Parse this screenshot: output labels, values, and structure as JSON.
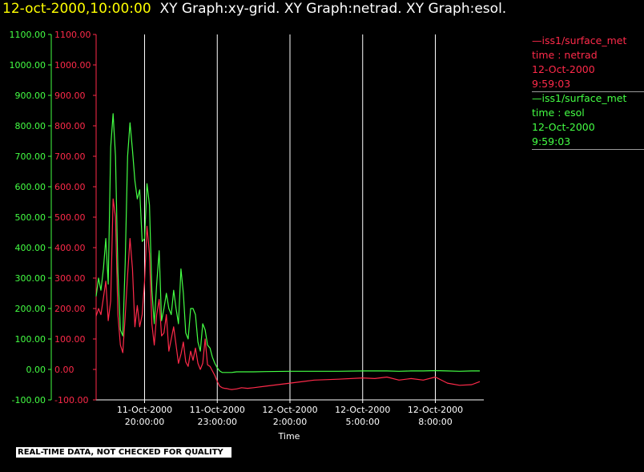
{
  "title": {
    "timestamp": "12-oct-2000,10:00:00",
    "graphs": "XY Graph:xy-grid.  XY Graph:netrad.  XY Graph:esol."
  },
  "colors": {
    "background": "#000000",
    "netrad": "#ff2a4a",
    "esol": "#44ff44",
    "grid": "#ffffff",
    "timestamp": "#ffff00"
  },
  "legend": [
    {
      "lines": [
        "—iss1/surface_met",
        "time : netrad",
        "12-Oct-2000",
        "9:59:03"
      ],
      "color": "#ff2a4a"
    },
    {
      "lines": [
        "—iss1/surface_met",
        "time : esol",
        "12-Oct-2000",
        "9:59:03"
      ],
      "color": "#44ff44"
    }
  ],
  "disclaimer": "REAL-TIME DATA, NOT CHECKED FOR QUALITY",
  "chart_data": {
    "type": "line",
    "xlabel": "Time",
    "xlim": [
      "11-Oct-2000 18:00:00",
      "12-Oct-2000 10:00:00"
    ],
    "ylim": [
      -100,
      1100
    ],
    "grid": true,
    "y_ticks": [
      "1100.00",
      "1000.00",
      "900.00",
      "800.00",
      "700.00",
      "600.00",
      "500.00",
      "400.00",
      "300.00",
      "200.00",
      "100.00",
      "0.00",
      "-100.00"
    ],
    "x_ticks": [
      {
        "time": "11-Oct-2000 20:00:00",
        "date": "11-Oct-2000",
        "clock": "20:00:00"
      },
      {
        "time": "11-Oct-2000 23:00:00",
        "date": "11-Oct-2000",
        "clock": "23:00:00"
      },
      {
        "time": "12-Oct-2000 02:00:00",
        "date": "12-Oct-2000",
        "clock": "2:00:00"
      },
      {
        "time": "12-Oct-2000 05:00:00",
        "date": "12-Oct-2000",
        "clock": "5:00:00"
      },
      {
        "time": "12-Oct-2000 08:00:00",
        "date": "12-Oct-2000",
        "clock": "8:00:00"
      }
    ],
    "series": [
      {
        "name": "netrad",
        "x": [
          "11-Oct-2000 18:00",
          "11-Oct-2000 18:06",
          "11-Oct-2000 18:12",
          "11-Oct-2000 18:18",
          "11-Oct-2000 18:24",
          "11-Oct-2000 18:30",
          "11-Oct-2000 18:36",
          "11-Oct-2000 18:42",
          "11-Oct-2000 18:48",
          "11-Oct-2000 18:54",
          "11-Oct-2000 19:00",
          "11-Oct-2000 19:06",
          "11-Oct-2000 19:12",
          "11-Oct-2000 19:18",
          "11-Oct-2000 19:24",
          "11-Oct-2000 19:30",
          "11-Oct-2000 19:36",
          "11-Oct-2000 19:42",
          "11-Oct-2000 19:48",
          "11-Oct-2000 19:54",
          "11-Oct-2000 20:00",
          "11-Oct-2000 20:06",
          "11-Oct-2000 20:12",
          "11-Oct-2000 20:18",
          "11-Oct-2000 20:24",
          "11-Oct-2000 20:30",
          "11-Oct-2000 20:36",
          "11-Oct-2000 20:42",
          "11-Oct-2000 20:48",
          "11-Oct-2000 20:54",
          "11-Oct-2000 21:00",
          "11-Oct-2000 21:06",
          "11-Oct-2000 21:12",
          "11-Oct-2000 21:18",
          "11-Oct-2000 21:24",
          "11-Oct-2000 21:30",
          "11-Oct-2000 21:36",
          "11-Oct-2000 21:42",
          "11-Oct-2000 21:48",
          "11-Oct-2000 21:54",
          "11-Oct-2000 22:00",
          "11-Oct-2000 22:06",
          "11-Oct-2000 22:12",
          "11-Oct-2000 22:18",
          "11-Oct-2000 22:24",
          "11-Oct-2000 22:30",
          "11-Oct-2000 22:36",
          "11-Oct-2000 22:42",
          "11-Oct-2000 22:48",
          "11-Oct-2000 22:54",
          "11-Oct-2000 23:00",
          "11-Oct-2000 23:06",
          "11-Oct-2000 23:12",
          "11-Oct-2000 23:18",
          "11-Oct-2000 23:24",
          "11-Oct-2000 23:30",
          "11-Oct-2000 23:36",
          "11-Oct-2000 23:42",
          "11-Oct-2000 23:48",
          "11-Oct-2000 23:54",
          "12-Oct-2000 00:00",
          "12-Oct-2000 00:15",
          "12-Oct-2000 00:30",
          "12-Oct-2000 01:00",
          "12-Oct-2000 02:00",
          "12-Oct-2000 03:00",
          "12-Oct-2000 04:00",
          "12-Oct-2000 05:00",
          "12-Oct-2000 05:30",
          "12-Oct-2000 06:00",
          "12-Oct-2000 06:30",
          "12-Oct-2000 07:00",
          "12-Oct-2000 07:30",
          "12-Oct-2000 08:00",
          "12-Oct-2000 08:30",
          "12-Oct-2000 09:00",
          "12-Oct-2000 09:30",
          "12-Oct-2000 09:50"
        ],
        "values": [
          175,
          200,
          180,
          235,
          290,
          160,
          225,
          560,
          500,
          180,
          80,
          55,
          175,
          310,
          430,
          330,
          140,
          210,
          140,
          180,
          290,
          470,
          380,
          150,
          80,
          180,
          230,
          110,
          120,
          180,
          60,
          100,
          140,
          80,
          20,
          50,
          90,
          25,
          10,
          60,
          30,
          70,
          20,
          0,
          20,
          100,
          15,
          10,
          -5,
          -20,
          -40,
          -55,
          -60,
          -62,
          -63,
          -65,
          -66,
          -65,
          -64,
          -62,
          -60,
          -62,
          -60,
          -55,
          -45,
          -35,
          -32,
          -28,
          -30,
          -25,
          -35,
          -30,
          -35,
          -25,
          -45,
          -52,
          -50,
          -40
        ]
      },
      {
        "name": "esol",
        "x": [
          "11-Oct-2000 18:00",
          "11-Oct-2000 18:06",
          "11-Oct-2000 18:12",
          "11-Oct-2000 18:18",
          "11-Oct-2000 18:24",
          "11-Oct-2000 18:30",
          "11-Oct-2000 18:36",
          "11-Oct-2000 18:42",
          "11-Oct-2000 18:48",
          "11-Oct-2000 18:54",
          "11-Oct-2000 19:00",
          "11-Oct-2000 19:06",
          "11-Oct-2000 19:12",
          "11-Oct-2000 19:18",
          "11-Oct-2000 19:24",
          "11-Oct-2000 19:30",
          "11-Oct-2000 19:36",
          "11-Oct-2000 19:42",
          "11-Oct-2000 19:48",
          "11-Oct-2000 19:54",
          "11-Oct-2000 20:00",
          "11-Oct-2000 20:06",
          "11-Oct-2000 20:12",
          "11-Oct-2000 20:18",
          "11-Oct-2000 20:24",
          "11-Oct-2000 20:30",
          "11-Oct-2000 20:36",
          "11-Oct-2000 20:42",
          "11-Oct-2000 20:48",
          "11-Oct-2000 20:54",
          "11-Oct-2000 21:00",
          "11-Oct-2000 21:06",
          "11-Oct-2000 21:12",
          "11-Oct-2000 21:18",
          "11-Oct-2000 21:24",
          "11-Oct-2000 21:30",
          "11-Oct-2000 21:36",
          "11-Oct-2000 21:42",
          "11-Oct-2000 21:48",
          "11-Oct-2000 21:54",
          "11-Oct-2000 22:00",
          "11-Oct-2000 22:06",
          "11-Oct-2000 22:12",
          "11-Oct-2000 22:18",
          "11-Oct-2000 22:24",
          "11-Oct-2000 22:30",
          "11-Oct-2000 22:36",
          "11-Oct-2000 22:42",
          "11-Oct-2000 22:48",
          "11-Oct-2000 22:54",
          "11-Oct-2000 23:00",
          "11-Oct-2000 23:06",
          "11-Oct-2000 23:12",
          "11-Oct-2000 23:18",
          "11-Oct-2000 23:24",
          "11-Oct-2000 23:30",
          "11-Oct-2000 23:36",
          "11-Oct-2000 23:42",
          "11-Oct-2000 23:48",
          "11-Oct-2000 23:54",
          "12-Oct-2000 00:00",
          "12-Oct-2000 00:15",
          "12-Oct-2000 00:30",
          "12-Oct-2000 01:00",
          "12-Oct-2000 02:00",
          "12-Oct-2000 03:00",
          "12-Oct-2000 04:00",
          "12-Oct-2000 05:00",
          "12-Oct-2000 05:30",
          "12-Oct-2000 06:00",
          "12-Oct-2000 06:30",
          "12-Oct-2000 07:00",
          "12-Oct-2000 07:30",
          "12-Oct-2000 08:00",
          "12-Oct-2000 08:30",
          "12-Oct-2000 09:00",
          "12-Oct-2000 09:30",
          "12-Oct-2000 09:50"
        ],
        "values": [
          240,
          300,
          260,
          330,
          430,
          280,
          730,
          840,
          700,
          320,
          130,
          110,
          350,
          700,
          810,
          720,
          620,
          560,
          590,
          420,
          430,
          610,
          540,
          260,
          150,
          280,
          390,
          160,
          200,
          250,
          200,
          180,
          260,
          200,
          150,
          330,
          250,
          120,
          100,
          200,
          200,
          180,
          90,
          60,
          150,
          130,
          80,
          70,
          40,
          20,
          5,
          -5,
          -10,
          -10,
          -10,
          -10,
          -10,
          -9,
          -8,
          -8,
          -8,
          -8,
          -8,
          -7,
          -6,
          -6,
          -6,
          -5,
          -5,
          -5,
          -6,
          -5,
          -5,
          -4,
          -5,
          -6,
          -5,
          -5
        ]
      }
    ]
  }
}
